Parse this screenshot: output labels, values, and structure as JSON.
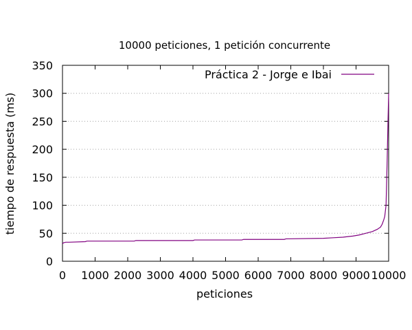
{
  "chart_data": {
    "type": "line",
    "title": "10000 peticiones, 1 petición concurrente",
    "xlabel": "peticiones",
    "ylabel": "tiempo de respuesta (ms)",
    "xlim": [
      0,
      10000
    ],
    "ylim": [
      0,
      350
    ],
    "xticks": [
      0,
      1000,
      2000,
      3000,
      4000,
      5000,
      6000,
      7000,
      8000,
      9000,
      10000
    ],
    "yticks": [
      0,
      50,
      100,
      150,
      200,
      250,
      300,
      350
    ],
    "grid": "horizontal dotted",
    "legend_position": "top-right",
    "series": [
      {
        "name": "Práctica 2 - Jorge e Ibai",
        "color": "#800080",
        "x": [
          0,
          30,
          100,
          200,
          700,
          750,
          2200,
          2250,
          4000,
          4050,
          5500,
          5550,
          6800,
          6850,
          8000,
          8300,
          8600,
          8900,
          9100,
          9300,
          9500,
          9650,
          9750,
          9800,
          9850,
          9880,
          9920,
          9950,
          9980,
          10000
        ],
        "y": [
          31,
          33,
          34,
          34,
          35,
          36,
          36,
          37,
          37,
          38,
          38,
          39,
          39,
          40,
          41,
          42,
          43,
          45,
          47,
          50,
          53,
          57,
          61,
          66,
          74,
          80,
          100,
          170,
          250,
          300
        ]
      }
    ]
  }
}
